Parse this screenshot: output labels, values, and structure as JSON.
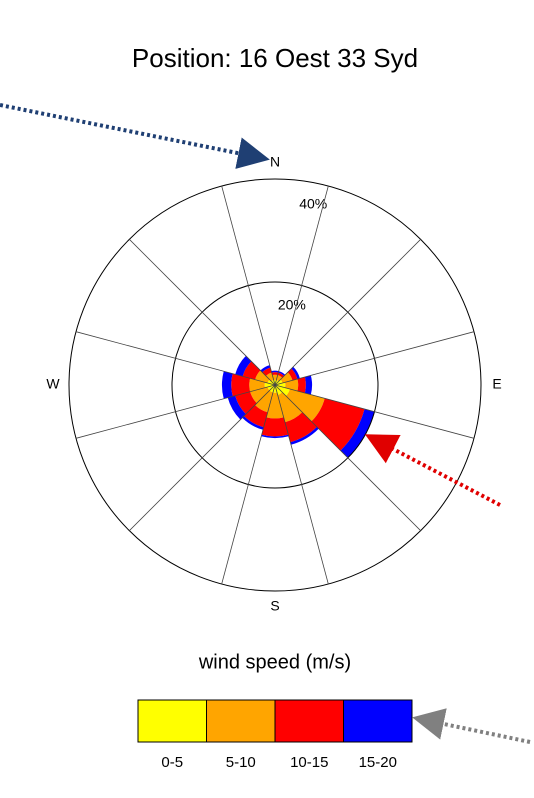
{
  "chart_data": {
    "type": "windrose",
    "title": "Position: 16 Oest 33 Syd",
    "categories": [
      "N",
      null,
      null,
      "E",
      null,
      null,
      "S",
      null,
      null,
      "W",
      null,
      null
    ],
    "series": [
      {
        "name": "0-5",
        "color": "#ffff00",
        "values": [
          1,
          1,
          1.5,
          2,
          3,
          2,
          1.5,
          1.5,
          1.5,
          2,
          1.5,
          1
        ]
      },
      {
        "name": "5-10",
        "color": "#ffa500",
        "values": [
          1,
          1,
          2,
          2.5,
          7,
          5.5,
          5,
          4,
          3.5,
          3,
          2.5,
          1.5
        ]
      },
      {
        "name": "10-15",
        "color": "#ff0000",
        "values": [
          0.5,
          0.5,
          1,
          1.5,
          8,
          4,
          3.5,
          3,
          3,
          3.5,
          2.5,
          1
        ]
      },
      {
        "name": "15-20",
        "color": "#0000ff",
        "values": [
          0.3,
          0.3,
          0.5,
          1.2,
          2,
          0.5,
          0.3,
          0.5,
          1.5,
          1.8,
          1.5,
          0.5
        ]
      }
    ],
    "rlim": [
      0,
      40
    ],
    "rticks": [
      {
        "value": 20,
        "label": "20%"
      },
      {
        "value": 40,
        "label": "40%"
      }
    ],
    "legend_title": "wind speed (m/s)"
  }
}
